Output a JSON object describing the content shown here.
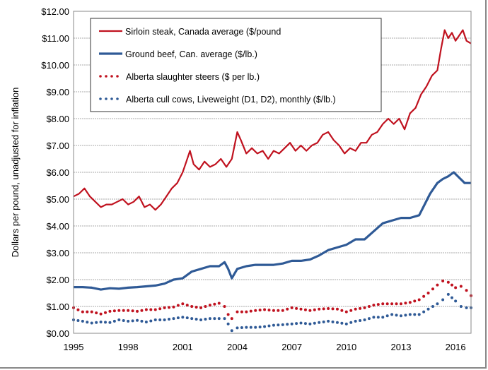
{
  "chart_data": {
    "type": "line",
    "title": "",
    "xlabel": "",
    "ylabel": "Dollars per pound, unadjusted for inflation",
    "xlim": [
      1995,
      2016.85
    ],
    "ylim": [
      0,
      12
    ],
    "grid": true,
    "legend_position": "top-left",
    "x_ticks": [
      "1995",
      "1998",
      "2001",
      "2004",
      "2007",
      "2010",
      "2013",
      "2016"
    ],
    "x_tick_values": [
      1995,
      1998,
      2001,
      2004,
      2007,
      2010,
      2013,
      2016
    ],
    "y_ticks": [
      "$0.00",
      "$1.00",
      "$2.00",
      "$3.00",
      "$4.00",
      "$5.00",
      "$6.00",
      "$7.00",
      "$8.00",
      "$9.00",
      "$10.00",
      "$11.00",
      "$12.00"
    ],
    "y_tick_values": [
      0,
      1,
      2,
      3,
      4,
      5,
      6,
      7,
      8,
      9,
      10,
      11,
      12
    ],
    "series": [
      {
        "name": "Sirloin steak, Canada average ($/pound",
        "style": "solid",
        "color": "#c0121f",
        "x": [
          1995,
          1995.3,
          1995.6,
          1995.9,
          1996.2,
          1996.5,
          1996.8,
          1997.1,
          1997.4,
          1997.7,
          1998,
          1998.3,
          1998.6,
          1998.9,
          1999.2,
          1999.5,
          1999.8,
          2000.1,
          2000.4,
          2000.7,
          2001,
          2001.2,
          2001.4,
          2001.6,
          2001.9,
          2002.2,
          2002.5,
          2002.8,
          2003.1,
          2003.4,
          2003.7,
          2004,
          2004.2,
          2004.5,
          2004.8,
          2005.1,
          2005.4,
          2005.7,
          2006,
          2006.3,
          2006.6,
          2006.9,
          2007.2,
          2007.5,
          2007.8,
          2008.1,
          2008.4,
          2008.7,
          2009,
          2009.3,
          2009.6,
          2009.9,
          2010.2,
          2010.5,
          2010.8,
          2011.1,
          2011.4,
          2011.7,
          2012,
          2012.3,
          2012.6,
          2012.9,
          2013.2,
          2013.5,
          2013.8,
          2014.1,
          2014.4,
          2014.7,
          2015,
          2015.2,
          2015.4,
          2015.6,
          2015.8,
          2016,
          2016.2,
          2016.4,
          2016.6,
          2016.85
        ],
        "values": [
          5.1,
          5.2,
          5.4,
          5.1,
          4.9,
          4.7,
          4.8,
          4.8,
          4.9,
          5.0,
          4.8,
          4.9,
          5.1,
          4.7,
          4.8,
          4.6,
          4.8,
          5.1,
          5.4,
          5.6,
          6.0,
          6.4,
          6.8,
          6.3,
          6.1,
          6.4,
          6.2,
          6.3,
          6.5,
          6.2,
          6.5,
          7.5,
          7.2,
          6.7,
          6.9,
          6.7,
          6.8,
          6.5,
          6.8,
          6.7,
          6.9,
          7.1,
          6.8,
          7.0,
          6.8,
          7.0,
          7.1,
          7.4,
          7.5,
          7.2,
          7.0,
          6.7,
          6.9,
          6.8,
          7.1,
          7.1,
          7.4,
          7.5,
          7.8,
          8.0,
          7.8,
          8.0,
          7.6,
          8.2,
          8.4,
          8.9,
          9.2,
          9.6,
          9.8,
          10.6,
          11.3,
          11.0,
          11.2,
          10.9,
          11.1,
          11.3,
          10.9,
          10.8
        ]
      },
      {
        "name": "Ground beef, Can. average ($/lb.)",
        "style": "solid",
        "color": "#2f5a96",
        "x": [
          1995,
          1995.5,
          1996,
          1996.5,
          1997,
          1997.5,
          1998,
          1998.5,
          1999,
          1999.5,
          2000,
          2000.5,
          2001,
          2001.5,
          2002,
          2002.5,
          2003,
          2003.3,
          2003.5,
          2003.7,
          2004,
          2004.5,
          2005,
          2005.5,
          2006,
          2006.5,
          2007,
          2007.5,
          2008,
          2008.5,
          2009,
          2009.5,
          2010,
          2010.5,
          2011,
          2011.5,
          2012,
          2012.5,
          2013,
          2013.5,
          2014,
          2014.3,
          2014.6,
          2015,
          2015.3,
          2015.6,
          2015.9,
          2016.2,
          2016.5,
          2016.85
        ],
        "values": [
          1.72,
          1.72,
          1.7,
          1.63,
          1.68,
          1.66,
          1.7,
          1.72,
          1.75,
          1.78,
          1.85,
          2.0,
          2.05,
          2.3,
          2.4,
          2.5,
          2.5,
          2.65,
          2.4,
          2.05,
          2.4,
          2.5,
          2.55,
          2.55,
          2.55,
          2.6,
          2.7,
          2.7,
          2.75,
          2.9,
          3.1,
          3.2,
          3.3,
          3.5,
          3.5,
          3.8,
          4.1,
          4.2,
          4.3,
          4.3,
          4.4,
          4.8,
          5.2,
          5.6,
          5.75,
          5.85,
          6.0,
          5.8,
          5.6,
          5.6
        ]
      },
      {
        "name": "Alberta slaughter steers ($ per lb.)",
        "style": "dotted",
        "color": "#c0121f",
        "x": [
          1995,
          1995.5,
          1996,
          1996.5,
          1997,
          1997.5,
          1998,
          1998.5,
          1999,
          1999.5,
          2000,
          2000.5,
          2001,
          2001.5,
          2002,
          2002.5,
          2003,
          2003.3,
          2003.5,
          2003.7,
          2004,
          2004.5,
          2005,
          2005.5,
          2006,
          2006.5,
          2007,
          2007.5,
          2008,
          2008.5,
          2009,
          2009.5,
          2010,
          2010.5,
          2011,
          2011.5,
          2012,
          2012.5,
          2013,
          2013.5,
          2014,
          2014.5,
          2015,
          2015.3,
          2015.6,
          2016,
          2016.3,
          2016.6,
          2016.85
        ],
        "values": [
          0.95,
          0.8,
          0.8,
          0.72,
          0.82,
          0.85,
          0.85,
          0.82,
          0.88,
          0.88,
          0.95,
          0.98,
          1.1,
          1.0,
          0.95,
          1.05,
          1.12,
          1.0,
          0.7,
          0.55,
          0.8,
          0.8,
          0.85,
          0.88,
          0.85,
          0.85,
          0.95,
          0.9,
          0.85,
          0.9,
          0.92,
          0.9,
          0.8,
          0.9,
          0.95,
          1.05,
          1.1,
          1.1,
          1.1,
          1.15,
          1.25,
          1.5,
          1.8,
          1.95,
          1.9,
          1.7,
          1.75,
          1.6,
          1.4
        ]
      },
      {
        "name": "Alberta cull cows, Liveweight (D1, D2), monthly ($/lb.)",
        "style": "dotted",
        "color": "#2f5a96",
        "x": [
          1995,
          1995.5,
          1996,
          1996.5,
          1997,
          1997.5,
          1998,
          1998.5,
          1999,
          1999.5,
          2000,
          2000.5,
          2001,
          2001.5,
          2002,
          2002.5,
          2003,
          2003.3,
          2003.5,
          2003.7,
          2004,
          2004.5,
          2005,
          2005.5,
          2006,
          2006.5,
          2007,
          2007.5,
          2008,
          2008.5,
          2009,
          2009.5,
          2010,
          2010.5,
          2011,
          2011.5,
          2012,
          2012.5,
          2013,
          2013.5,
          2014,
          2014.5,
          2015,
          2015.3,
          2015.6,
          2016,
          2016.3,
          2016.6,
          2016.85
        ],
        "values": [
          0.5,
          0.45,
          0.38,
          0.42,
          0.4,
          0.5,
          0.45,
          0.48,
          0.42,
          0.5,
          0.5,
          0.55,
          0.6,
          0.55,
          0.5,
          0.55,
          0.55,
          0.55,
          0.35,
          0.1,
          0.2,
          0.22,
          0.22,
          0.25,
          0.3,
          0.32,
          0.35,
          0.38,
          0.35,
          0.4,
          0.45,
          0.4,
          0.35,
          0.45,
          0.5,
          0.6,
          0.6,
          0.7,
          0.65,
          0.7,
          0.7,
          0.9,
          1.1,
          1.25,
          1.45,
          1.2,
          1.0,
          0.95,
          0.95
        ]
      }
    ]
  }
}
